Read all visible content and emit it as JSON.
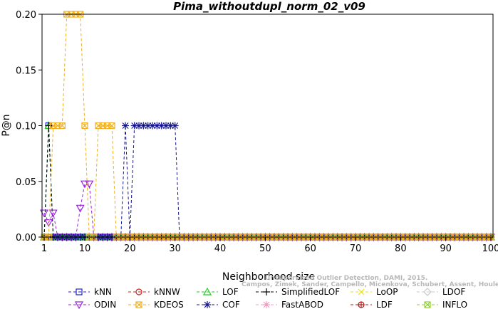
{
  "chart_data": {
    "type": "line",
    "title": "Pima_withoutdupl_norm_02_v09",
    "xlabel": "Neighborhood size",
    "ylabel": "P@n",
    "xlim": [
      0,
      101
    ],
    "ylim": [
      0,
      0.2
    ],
    "x_ticks": [
      1,
      10,
      20,
      30,
      40,
      50,
      60,
      70,
      80,
      90,
      100
    ],
    "y_ticks": [
      0.0,
      0.05,
      0.1,
      0.15,
      0.2
    ],
    "y_tick_labels": [
      "0.00",
      "0.05",
      "0.10",
      "0.15",
      "0.20"
    ],
    "grid": false,
    "legend_position": "bottom",
    "series": [
      {
        "name": "kNN",
        "color": "#1f1fd0",
        "marker": "square",
        "sparse": [
          [
            2,
            0.1
          ]
        ]
      },
      {
        "name": "kNNW",
        "color": "#d01f1f",
        "marker": "circle",
        "sparse": []
      },
      {
        "name": "LOF",
        "color": "#22cc22",
        "marker": "triangle-up",
        "sparse": [
          [
            2,
            0.1
          ]
        ]
      },
      {
        "name": "SimplifiedLOF",
        "color": "#000000",
        "marker": "plus",
        "sparse": [
          [
            2,
            0.1
          ]
        ]
      },
      {
        "name": "LoOP",
        "color": "#e6e61a",
        "marker": "x",
        "sparse": []
      },
      {
        "name": "LDOF",
        "color": "#c8c8c8",
        "marker": "diamond",
        "sparse": []
      },
      {
        "name": "ODIN",
        "color": "#9a22e0",
        "marker": "triangle-down",
        "sparse": [
          [
            1,
            0.0217
          ],
          [
            2,
            0.013
          ],
          [
            3,
            0.0217
          ],
          [
            9,
            0.026
          ],
          [
            10,
            0.0478
          ],
          [
            11,
            0.0478
          ]
        ]
      },
      {
        "name": "KDEOS",
        "color": "#f0b020",
        "marker": "square-x",
        "sparse": [
          [
            3,
            0.1
          ],
          [
            4,
            0.1
          ],
          [
            5,
            0.1
          ],
          [
            6,
            0.2
          ],
          [
            7,
            0.2
          ],
          [
            8,
            0.2
          ],
          [
            9,
            0.2
          ],
          [
            10,
            0.1
          ],
          [
            13,
            0.1
          ],
          [
            14,
            0.1
          ],
          [
            15,
            0.1
          ],
          [
            16,
            0.1
          ]
        ]
      },
      {
        "name": "COF",
        "color": "#14148c",
        "marker": "asterisk",
        "sparse": [
          [
            19,
            0.1
          ],
          [
            21,
            0.1
          ],
          [
            22,
            0.1
          ],
          [
            23,
            0.1
          ],
          [
            24,
            0.1
          ],
          [
            25,
            0.1
          ],
          [
            26,
            0.1
          ],
          [
            27,
            0.1
          ],
          [
            28,
            0.1
          ],
          [
            29,
            0.1
          ],
          [
            30,
            0.1
          ]
        ]
      },
      {
        "name": "FastABOD",
        "color": "#f4a0c0",
        "marker": "star",
        "sparse": []
      },
      {
        "name": "LDF",
        "color": "#b01818",
        "marker": "circle-plus",
        "sparse": []
      },
      {
        "name": "INFLO",
        "color": "#90d030",
        "marker": "square-x",
        "sparse": []
      }
    ]
  },
  "watermark": {
    "line1": "Unsupervised Outlier Detection, DAMI, 2015.",
    "line2": "Campos, Zimek, Sander, Campello, Micenkova, Schubert, Assent, Houle"
  }
}
